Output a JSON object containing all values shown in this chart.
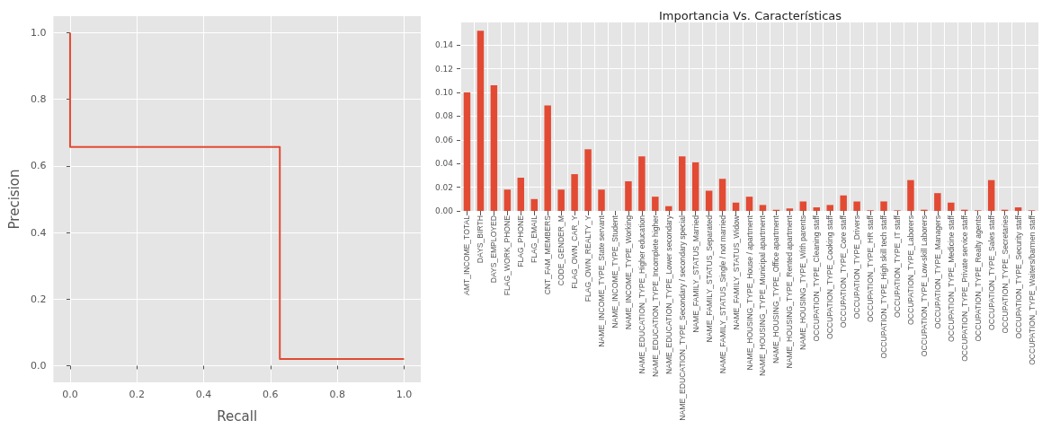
{
  "chart_data": [
    {
      "type": "step",
      "xlabel": "Recall",
      "ylabel": "Precision",
      "color": "#e24a33",
      "x": [
        0,
        0,
        0.628,
        1
      ],
      "values": [
        1,
        0.657,
        0.02,
        0.02
      ],
      "xlim": [
        -0.05,
        1.05
      ],
      "ylim": [
        -0.05,
        1.05
      ],
      "xticks": [
        {
          "value": 0,
          "label": "0.0"
        },
        {
          "value": 0.2,
          "label": "0.2"
        },
        {
          "value": 0.4,
          "label": "0.4"
        },
        {
          "value": 0.6,
          "label": "0.6"
        },
        {
          "value": 0.8,
          "label": "0.8"
        },
        {
          "value": 1,
          "label": "1.0"
        }
      ],
      "yticks": [
        {
          "value": 0,
          "label": "0.0"
        },
        {
          "value": 0.2,
          "label": "0.2"
        },
        {
          "value": 0.4,
          "label": "0.4"
        },
        {
          "value": 0.6,
          "label": "0.6"
        },
        {
          "value": 0.8,
          "label": "0.8"
        },
        {
          "value": 1,
          "label": "1.0"
        }
      ],
      "grid": true
    },
    {
      "type": "bar",
      "title": "Importancia Vs. Características",
      "color": "#e24a33",
      "categories": [
        "AMT_INCOME_TOTAL",
        "DAYS_BIRTH",
        "DAYS_EMPLOYED",
        "FLAG_WORK_PHONE",
        "FLAG_PHONE",
        "FLAG_EMAIL",
        "CNT_FAM_MEMBERS",
        "CODE_GENDER_M",
        "FLAG_OWN_CAR_Y",
        "FLAG_OWN_REALTY_Y",
        "NAME_INCOME_TYPE_State servant",
        "NAME_INCOME_TYPE_Student",
        "NAME_INCOME_TYPE_Working",
        "NAME_EDUCATION_TYPE_Higher education",
        "NAME_EDUCATION_TYPE_Incomplete higher",
        "NAME_EDUCATION_TYPE_Lower secondary",
        "NAME_EDUCATION_TYPE_Secondary / secondary special",
        "NAME_FAMILY_STATUS_Married",
        "NAME_FAMILY_STATUS_Separated",
        "NAME_FAMILY_STATUS_Single / not married",
        "NAME_FAMILY_STATUS_Widow",
        "NAME_HOUSING_TYPE_House / apartment",
        "NAME_HOUSING_TYPE_Municipal apartment",
        "NAME_HOUSING_TYPE_Office apartment",
        "NAME_HOUSING_TYPE_Rented apartment",
        "NAME_HOUSING_TYPE_With parents",
        "OCCUPATION_TYPE_Cleaning staff",
        "OCCUPATION_TYPE_Cooking staff",
        "OCCUPATION_TYPE_Core staff",
        "OCCUPATION_TYPE_Drivers",
        "OCCUPATION_TYPE_HR staff",
        "OCCUPATION_TYPE_High skill tech staff",
        "OCCUPATION_TYPE_IT staff",
        "OCCUPATION_TYPE_Laborers",
        "OCCUPATION_TYPE_Low-skill Laborers",
        "OCCUPATION_TYPE_Managers",
        "OCCUPATION_TYPE_Medicine staff",
        "OCCUPATION_TYPE_Private service staff",
        "OCCUPATION_TYPE_Realty agents",
        "OCCUPATION_TYPE_Sales staff",
        "OCCUPATION_TYPE_Secretaries",
        "OCCUPATION_TYPE_Security staff",
        "OCCUPATION_TYPE_Waiters/barmen staff"
      ],
      "values": [
        0.1,
        0.152,
        0.106,
        0.018,
        0.028,
        0.01,
        0.089,
        0.018,
        0.031,
        0.052,
        0.018,
        0.0,
        0.025,
        0.046,
        0.012,
        0.004,
        0.046,
        0.041,
        0.017,
        0.027,
        0.007,
        0.012,
        0.005,
        0.001,
        0.002,
        0.008,
        0.003,
        0.005,
        0.013,
        0.008,
        0.0005,
        0.008,
        0.0005,
        0.026,
        0.001,
        0.015,
        0.007,
        0.001,
        0.0005,
        0.026,
        0.001,
        0.003,
        0.0005
      ],
      "ylim": [
        0,
        0.159
      ],
      "yticks": [
        {
          "value": 0,
          "label": "0.00"
        },
        {
          "value": 0.02,
          "label": "0.02"
        },
        {
          "value": 0.04,
          "label": "0.04"
        },
        {
          "value": 0.06,
          "label": "0.06"
        },
        {
          "value": 0.08,
          "label": "0.08"
        },
        {
          "value": 0.1,
          "label": "0.10"
        },
        {
          "value": 0.12,
          "label": "0.12"
        },
        {
          "value": 0.14,
          "label": "0.14"
        }
      ],
      "grid": true
    }
  ]
}
